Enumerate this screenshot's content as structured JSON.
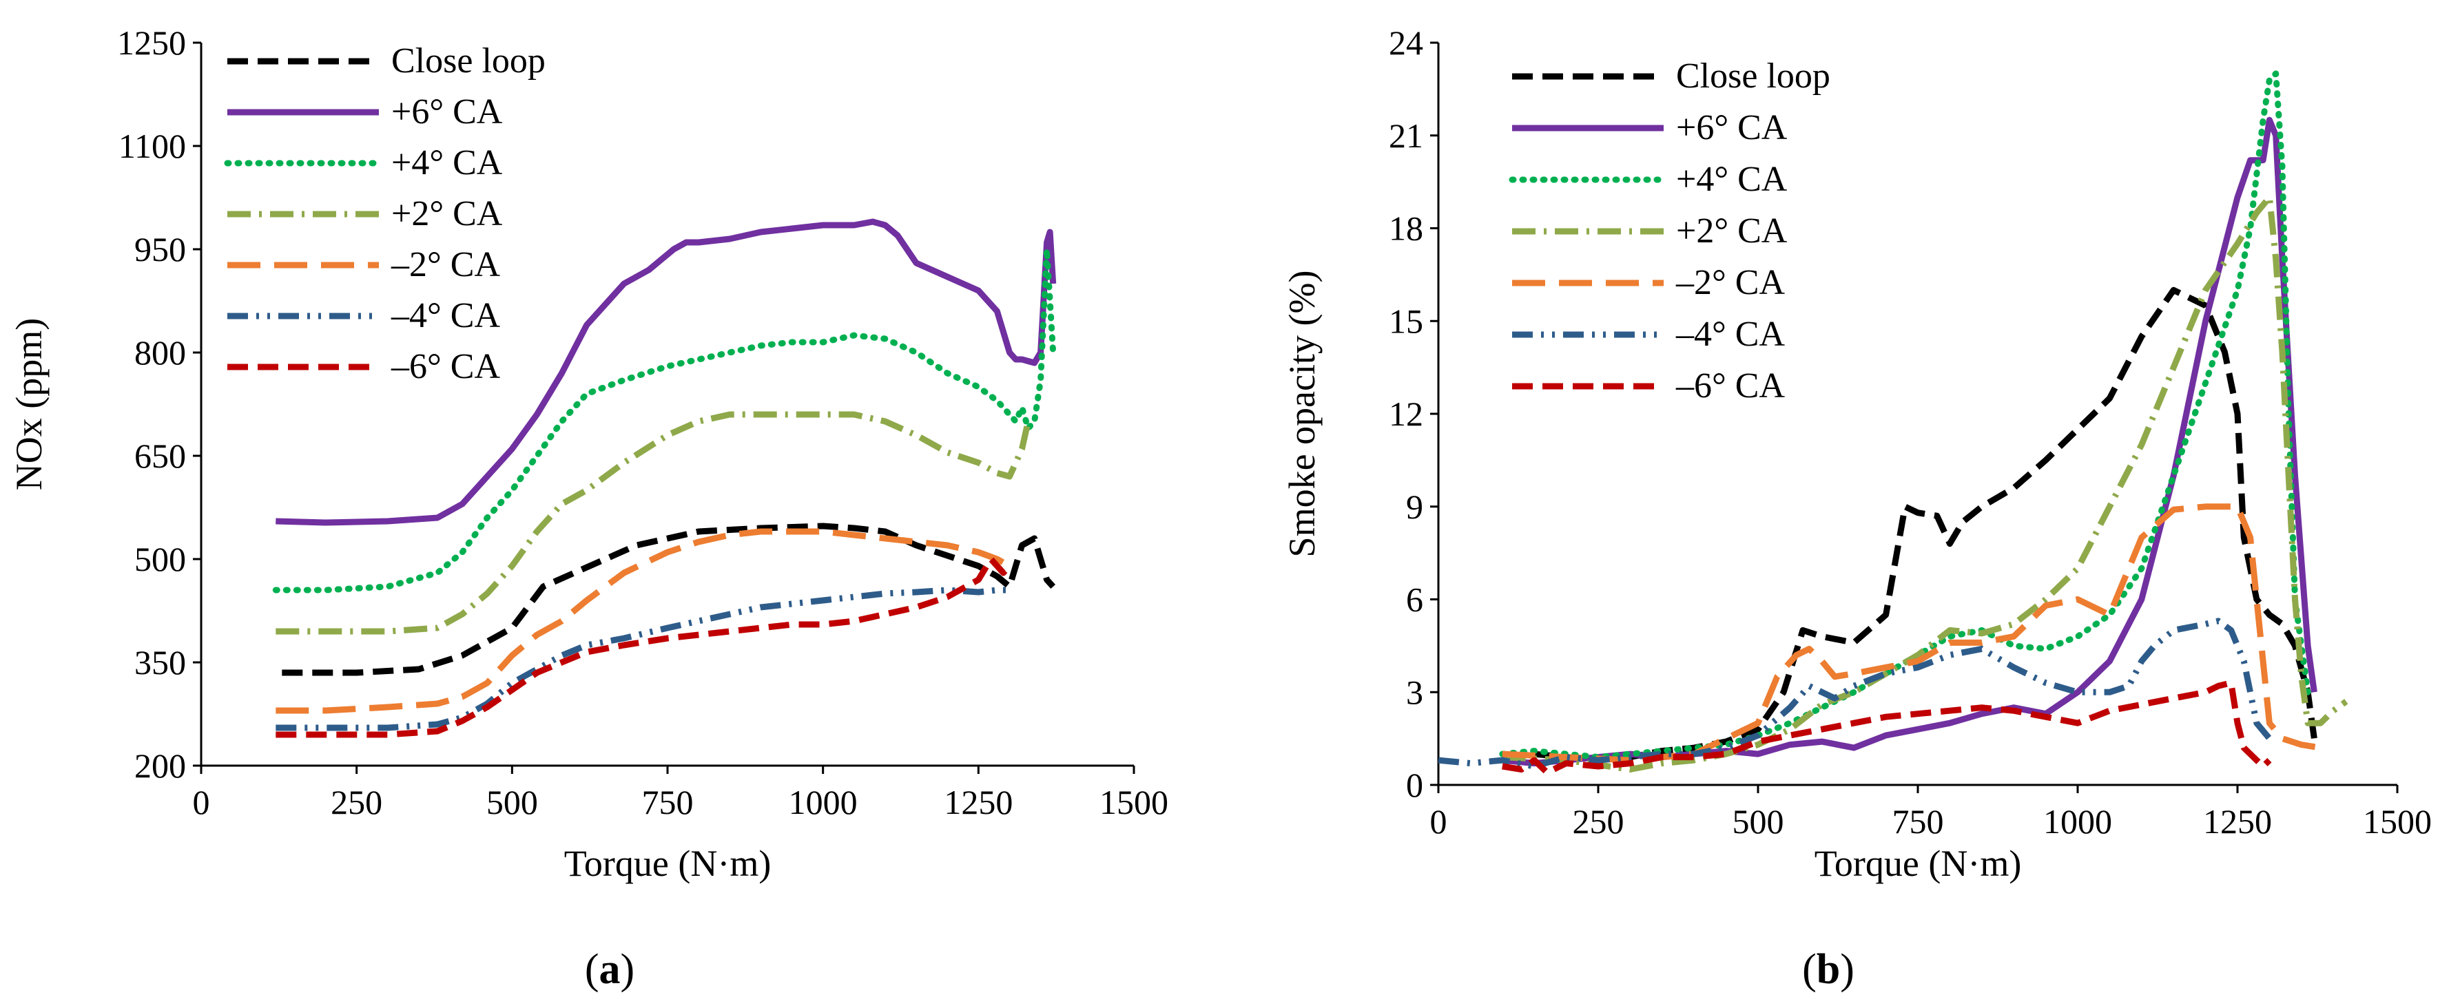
{
  "chart_data": [
    {
      "type": "line",
      "panel_label": "a",
      "xlabel": "Torque (N·m)",
      "ylabel": "NOx (ppm)",
      "xlim": [
        0,
        1500
      ],
      "ylim": [
        200,
        1250
      ],
      "xticks": [
        0,
        250,
        500,
        750,
        1000,
        1250,
        1500
      ],
      "yticks": [
        200,
        350,
        500,
        650,
        800,
        950,
        1100,
        1250
      ],
      "grid": false,
      "legend_position": "top-left",
      "series": [
        {
          "name": "Close loop",
          "color": "#000000",
          "dash": "dashed",
          "x": [
            130,
            250,
            350,
            420,
            500,
            550,
            600,
            700,
            800,
            900,
            1000,
            1050,
            1100,
            1150,
            1200,
            1250,
            1280,
            1300,
            1320,
            1340,
            1360,
            1370
          ],
          "y": [
            335,
            335,
            340,
            360,
            400,
            460,
            480,
            520,
            540,
            545,
            548,
            545,
            540,
            520,
            505,
            490,
            475,
            460,
            520,
            530,
            470,
            460
          ]
        },
        {
          "name": "+6° CA",
          "color": "#7030A0",
          "dash": "solid",
          "x": [
            120,
            200,
            300,
            380,
            420,
            460,
            500,
            540,
            580,
            620,
            680,
            720,
            760,
            780,
            800,
            850,
            900,
            950,
            1000,
            1050,
            1080,
            1100,
            1120,
            1150,
            1200,
            1250,
            1280,
            1300,
            1310,
            1320,
            1340,
            1350,
            1360,
            1365,
            1370
          ],
          "y": [
            555,
            553,
            555,
            560,
            580,
            620,
            660,
            710,
            770,
            840,
            900,
            920,
            950,
            960,
            960,
            965,
            975,
            980,
            985,
            985,
            990,
            985,
            970,
            930,
            910,
            890,
            860,
            800,
            790,
            790,
            785,
            800,
            960,
            975,
            900
          ]
        },
        {
          "name": "+4° CA",
          "color": "#00B050",
          "dash": "dotted",
          "x": [
            120,
            200,
            300,
            380,
            420,
            460,
            500,
            540,
            580,
            620,
            680,
            750,
            800,
            850,
            900,
            950,
            1000,
            1050,
            1100,
            1150,
            1200,
            1250,
            1280,
            1300,
            1310,
            1320,
            1330,
            1340,
            1350,
            1360,
            1370
          ],
          "y": [
            455,
            455,
            460,
            480,
            510,
            560,
            600,
            650,
            700,
            740,
            760,
            780,
            790,
            800,
            810,
            815,
            815,
            825,
            820,
            800,
            770,
            750,
            730,
            710,
            700,
            720,
            690,
            700,
            760,
            950,
            800
          ]
        },
        {
          "name": "+2° CA",
          "color": "#8FA94A",
          "dash": "dashdot",
          "x": [
            120,
            200,
            300,
            380,
            420,
            460,
            500,
            540,
            580,
            620,
            680,
            750,
            800,
            850,
            900,
            950,
            1000,
            1050,
            1100,
            1150,
            1200,
            1250,
            1280,
            1300,
            1310,
            1320,
            1330
          ],
          "y": [
            395,
            395,
            395,
            400,
            420,
            450,
            490,
            540,
            580,
            600,
            640,
            680,
            700,
            710,
            710,
            710,
            710,
            710,
            700,
            680,
            655,
            640,
            625,
            620,
            640,
            660,
            700
          ]
        },
        {
          "name": "–2° CA",
          "color": "#ED7D31",
          "dash": "longdash",
          "x": [
            120,
            200,
            300,
            380,
            420,
            460,
            500,
            540,
            580,
            620,
            680,
            750,
            800,
            850,
            900,
            950,
            1000,
            1050,
            1100,
            1150,
            1200,
            1250,
            1280,
            1300
          ],
          "y": [
            280,
            280,
            285,
            290,
            300,
            320,
            360,
            390,
            410,
            440,
            480,
            510,
            525,
            535,
            540,
            540,
            540,
            535,
            530,
            525,
            520,
            510,
            500,
            490
          ]
        },
        {
          "name": "–4° CA",
          "color": "#2E5C8A",
          "dash": "dashdotdot",
          "x": [
            120,
            200,
            300,
            380,
            420,
            460,
            500,
            540,
            580,
            620,
            680,
            750,
            800,
            850,
            900,
            950,
            1000,
            1050,
            1100,
            1150,
            1200,
            1250,
            1280,
            1300
          ],
          "y": [
            255,
            255,
            255,
            260,
            270,
            290,
            320,
            340,
            360,
            375,
            385,
            400,
            410,
            420,
            430,
            435,
            440,
            445,
            450,
            452,
            455,
            452,
            455,
            455
          ]
        },
        {
          "name": "–6° CA",
          "color": "#C00000",
          "dash": "dashed",
          "x": [
            120,
            200,
            300,
            380,
            420,
            460,
            500,
            540,
            580,
            620,
            680,
            750,
            800,
            850,
            900,
            950,
            1000,
            1050,
            1100,
            1150,
            1200,
            1250,
            1270,
            1290,
            1300
          ],
          "y": [
            245,
            245,
            245,
            250,
            265,
            285,
            310,
            335,
            350,
            365,
            375,
            385,
            390,
            395,
            400,
            405,
            405,
            410,
            420,
            430,
            445,
            470,
            500,
            480,
            490
          ]
        }
      ]
    },
    {
      "type": "line",
      "panel_label": "b",
      "xlabel": "Torque (N·m)",
      "ylabel": "Smoke opacity (%)",
      "xlim": [
        0,
        1500
      ],
      "ylim": [
        0,
        24
      ],
      "xticks": [
        0,
        250,
        500,
        750,
        1000,
        1250,
        1500
      ],
      "yticks": [
        0,
        3,
        6,
        9,
        12,
        15,
        18,
        21,
        24
      ],
      "grid": false,
      "legend_position": "top-left",
      "series": [
        {
          "name": "Close loop",
          "color": "#000000",
          "dash": "dashed",
          "x": [
            100,
            150,
            200,
            250,
            300,
            350,
            400,
            450,
            500,
            540,
            570,
            600,
            650,
            700,
            730,
            750,
            780,
            800,
            820,
            850,
            900,
            950,
            1000,
            1050,
            1100,
            1150,
            1200,
            1230,
            1250,
            1260,
            1270,
            1280,
            1300,
            1320,
            1340,
            1360,
            1370
          ],
          "y": [
            0.8,
            1.0,
            0.9,
            0.8,
            0.9,
            1.1,
            1.2,
            1.4,
            1.8,
            3.0,
            5.0,
            4.8,
            4.6,
            5.5,
            9.0,
            8.8,
            8.7,
            7.8,
            8.5,
            9.0,
            9.6,
            10.5,
            11.5,
            12.5,
            14.5,
            16.0,
            15.5,
            14.0,
            12.0,
            8.0,
            7.0,
            6.0,
            5.5,
            5.2,
            4.5,
            3.0,
            1.5
          ]
        },
        {
          "name": "+6° CA",
          "color": "#7030A0",
          "dash": "solid",
          "x": [
            100,
            150,
            200,
            250,
            300,
            350,
            400,
            450,
            500,
            550,
            600,
            650,
            700,
            750,
            800,
            850,
            900,
            950,
            1000,
            1050,
            1100,
            1150,
            1200,
            1250,
            1270,
            1290,
            1300,
            1310,
            1320,
            1340,
            1360,
            1370
          ],
          "y": [
            0.8,
            0.7,
            0.8,
            0.9,
            1.0,
            0.9,
            1.0,
            1.1,
            1.0,
            1.3,
            1.4,
            1.2,
            1.6,
            1.8,
            2.0,
            2.3,
            2.5,
            2.3,
            3.0,
            4.0,
            6.0,
            10.0,
            15.0,
            19.0,
            20.2,
            20.2,
            21.5,
            21.0,
            17.0,
            10.0,
            4.5,
            3.0
          ]
        },
        {
          "name": "+4° CA",
          "color": "#00B050",
          "dash": "dotted",
          "x": [
            100,
            150,
            200,
            250,
            300,
            350,
            400,
            450,
            500,
            550,
            600,
            650,
            700,
            750,
            800,
            850,
            900,
            950,
            1000,
            1050,
            1100,
            1150,
            1200,
            1250,
            1270,
            1290,
            1300,
            1310,
            1320,
            1330,
            1340,
            1360
          ],
          "y": [
            1.0,
            1.1,
            1.0,
            0.9,
            1.0,
            1.1,
            1.2,
            1.3,
            1.6,
            2.0,
            2.5,
            3.0,
            3.6,
            4.2,
            4.8,
            5.0,
            4.5,
            4.4,
            4.8,
            5.5,
            7.0,
            10.0,
            13.0,
            16.0,
            18.0,
            21.5,
            22.8,
            23.0,
            20.0,
            12.0,
            6.0,
            3.0
          ]
        },
        {
          "name": "+2° CA",
          "color": "#8FA94A",
          "dash": "dashdot",
          "x": [
            100,
            200,
            300,
            350,
            400,
            450,
            500,
            550,
            600,
            650,
            700,
            750,
            800,
            850,
            900,
            950,
            1000,
            1050,
            1100,
            1150,
            1200,
            1250,
            1280,
            1300,
            1310,
            1320,
            1330,
            1340,
            1350,
            1360,
            1380,
            1400,
            1420
          ],
          "y": [
            0.9,
            0.8,
            0.5,
            0.7,
            0.8,
            1.0,
            1.3,
            1.8,
            2.6,
            3.0,
            3.6,
            4.2,
            5.0,
            4.9,
            5.2,
            6.0,
            7.0,
            9.0,
            11.0,
            13.5,
            16.0,
            17.5,
            18.5,
            19.0,
            17.0,
            14.0,
            10.0,
            6.0,
            3.5,
            2.0,
            2.0,
            2.4,
            2.7
          ]
        },
        {
          "name": "–2° CA",
          "color": "#ED7D31",
          "dash": "longdash",
          "x": [
            100,
            200,
            300,
            400,
            450,
            500,
            530,
            560,
            580,
            600,
            620,
            650,
            700,
            750,
            800,
            850,
            900,
            950,
            1000,
            1050,
            1100,
            1150,
            1200,
            1250,
            1270,
            1280,
            1290,
            1300,
            1320,
            1350,
            1380
          ],
          "y": [
            1.0,
            0.9,
            0.8,
            1.0,
            1.5,
            2.0,
            3.5,
            4.2,
            4.4,
            4.0,
            3.5,
            3.6,
            3.8,
            4.0,
            4.6,
            4.6,
            4.8,
            5.8,
            6.0,
            5.5,
            8.0,
            8.9,
            9.0,
            9.0,
            8.0,
            6.0,
            4.0,
            2.0,
            1.5,
            1.3,
            1.2
          ]
        },
        {
          "name": "–4° CA",
          "color": "#2E5C8A",
          "dash": "dashdotdot",
          "x": [
            0,
            50,
            100,
            150,
            200,
            250,
            300,
            350,
            400,
            450,
            500,
            550,
            580,
            600,
            620,
            650,
            700,
            750,
            800,
            850,
            900,
            950,
            1000,
            1050,
            1080,
            1100,
            1120,
            1150,
            1200,
            1220,
            1240,
            1260,
            1280,
            1300
          ],
          "y": [
            0.8,
            0.7,
            0.8,
            0.6,
            0.9,
            0.8,
            0.9,
            1.0,
            1.0,
            1.2,
            1.6,
            2.5,
            3.2,
            3.0,
            2.8,
            3.2,
            3.6,
            3.8,
            4.2,
            4.4,
            3.8,
            3.3,
            3.0,
            3.0,
            3.2,
            4.0,
            4.5,
            5.0,
            5.2,
            5.3,
            5.0,
            4.0,
            2.0,
            1.5
          ]
        },
        {
          "name": "–6° CA",
          "color": "#C00000",
          "dash": "dashed",
          "x": [
            100,
            130,
            150,
            170,
            200,
            250,
            300,
            350,
            400,
            450,
            500,
            550,
            600,
            650,
            700,
            750,
            800,
            850,
            900,
            950,
            1000,
            1050,
            1100,
            1150,
            1200,
            1220,
            1240,
            1250,
            1260,
            1270,
            1280,
            1290,
            1300
          ],
          "y": [
            0.6,
            0.5,
            0.8,
            0.4,
            0.7,
            0.6,
            0.7,
            0.9,
            0.9,
            1.0,
            1.4,
            1.6,
            1.8,
            2.0,
            2.2,
            2.3,
            2.4,
            2.5,
            2.4,
            2.2,
            2.0,
            2.4,
            2.6,
            2.8,
            3.0,
            3.2,
            3.3,
            2.0,
            1.2,
            1.0,
            0.8,
            0.6,
            0.8
          ]
        }
      ]
    }
  ]
}
